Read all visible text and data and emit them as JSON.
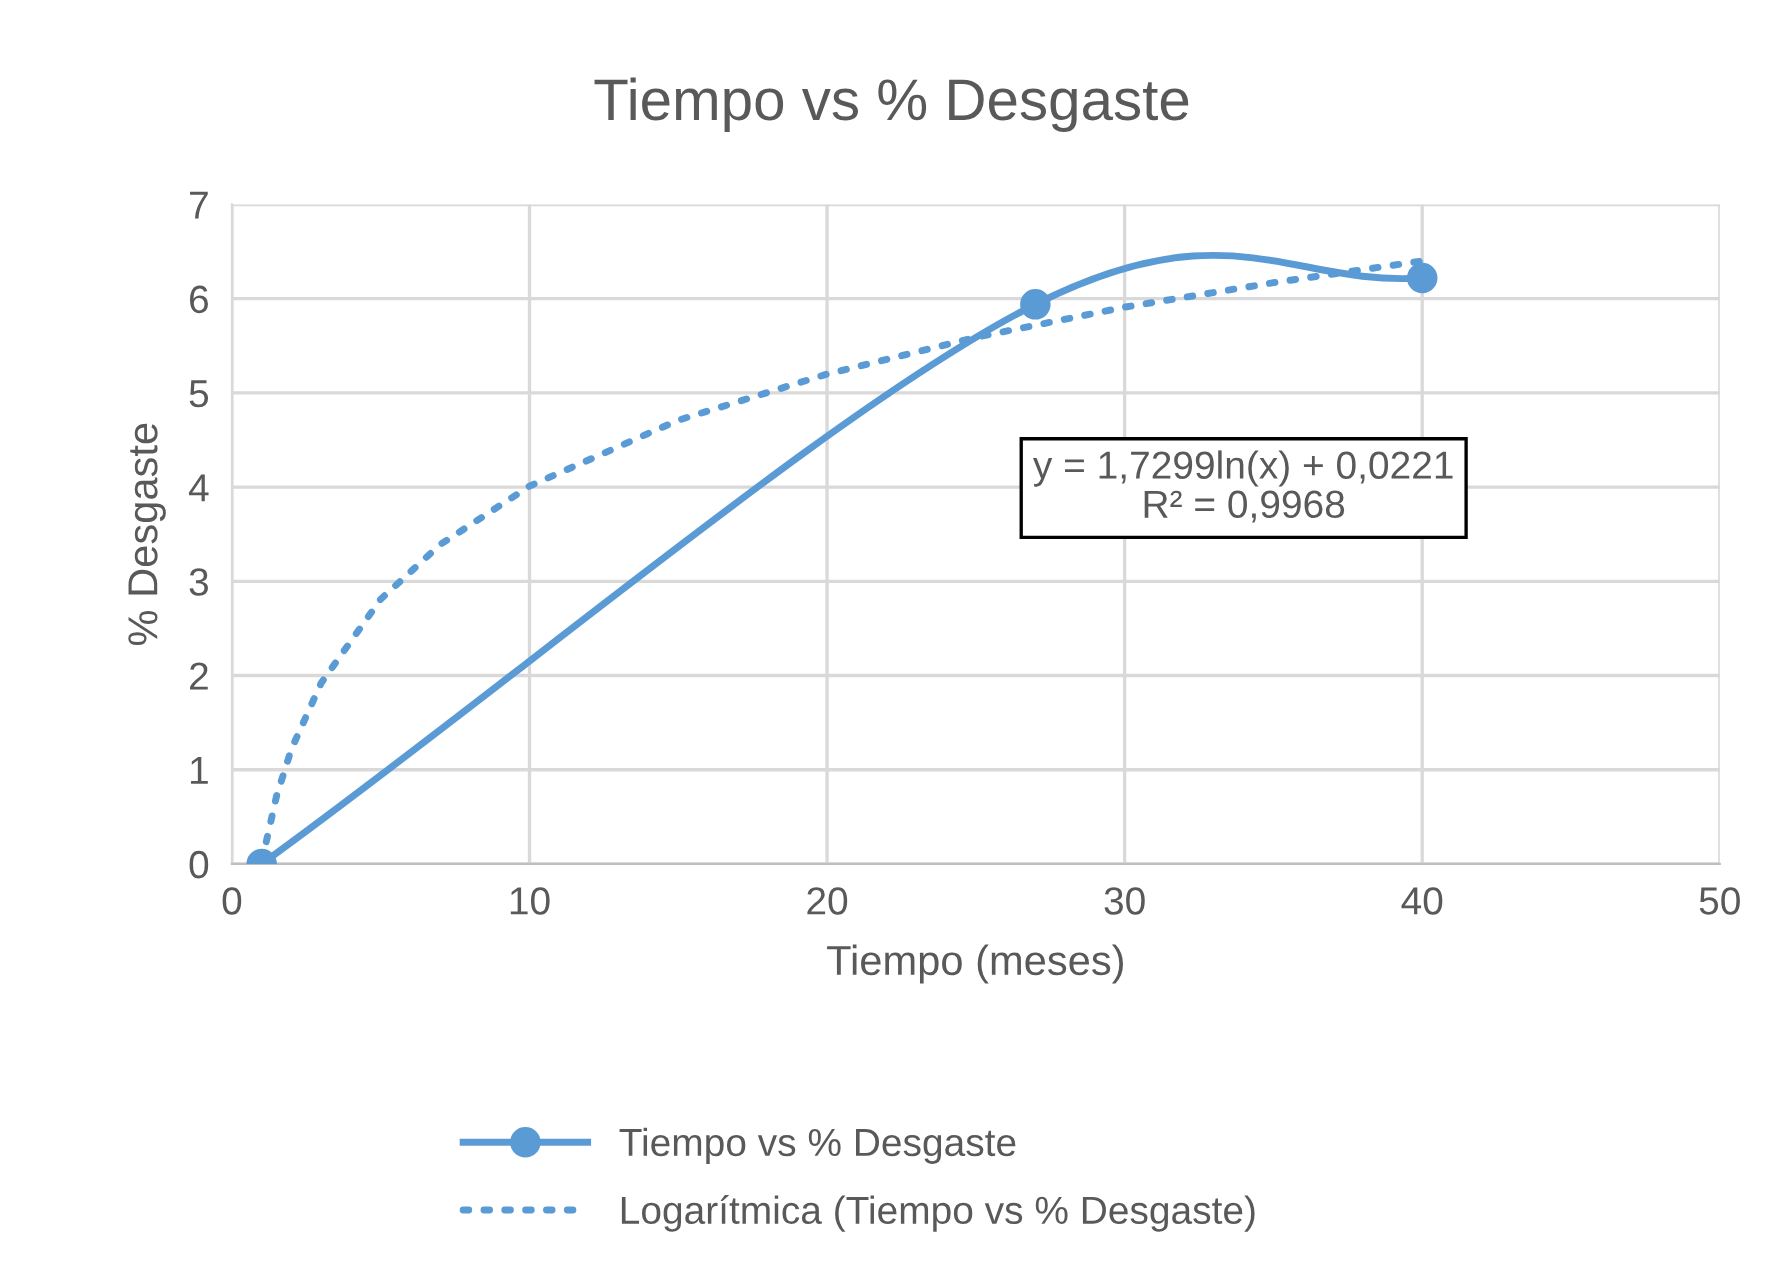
{
  "chart_data": {
    "type": "line",
    "title": "Tiempo vs % Desgaste",
    "xlabel": "Tiempo (meses)",
    "ylabel": "% Desgaste",
    "xlim": [
      0,
      50
    ],
    "xticks": [
      0,
      10,
      20,
      30,
      40,
      50
    ],
    "ylim": [
      0,
      7
    ],
    "yticks": [
      0,
      1,
      2,
      3,
      4,
      5,
      6,
      7
    ],
    "grid": true,
    "legend": "bottom",
    "series": [
      {
        "name": "Tiempo vs % Desgaste",
        "color": "#5b9bd5",
        "x": [
          1,
          27,
          40
        ],
        "values": [
          0,
          5.94,
          6.22
        ],
        "marker": "circle",
        "line_style": "solid"
      },
      {
        "name": "Logarítmica (Tiempo vs % Desgaste)",
        "color": "#5b9bd5",
        "x": [
          1,
          1.5,
          2,
          3,
          5,
          7,
          10,
          15,
          20,
          25,
          30,
          35,
          40
        ],
        "values": [
          0.02,
          0.72,
          1.22,
          1.92,
          2.81,
          3.39,
          4.01,
          4.71,
          5.2,
          5.59,
          5.91,
          6.17,
          6.4
        ],
        "marker": "none",
        "line_style": "dotted"
      }
    ],
    "annotations": [
      "y = 1,7299ln(x) + 0,0221",
      "R² = 0,9968"
    ]
  }
}
